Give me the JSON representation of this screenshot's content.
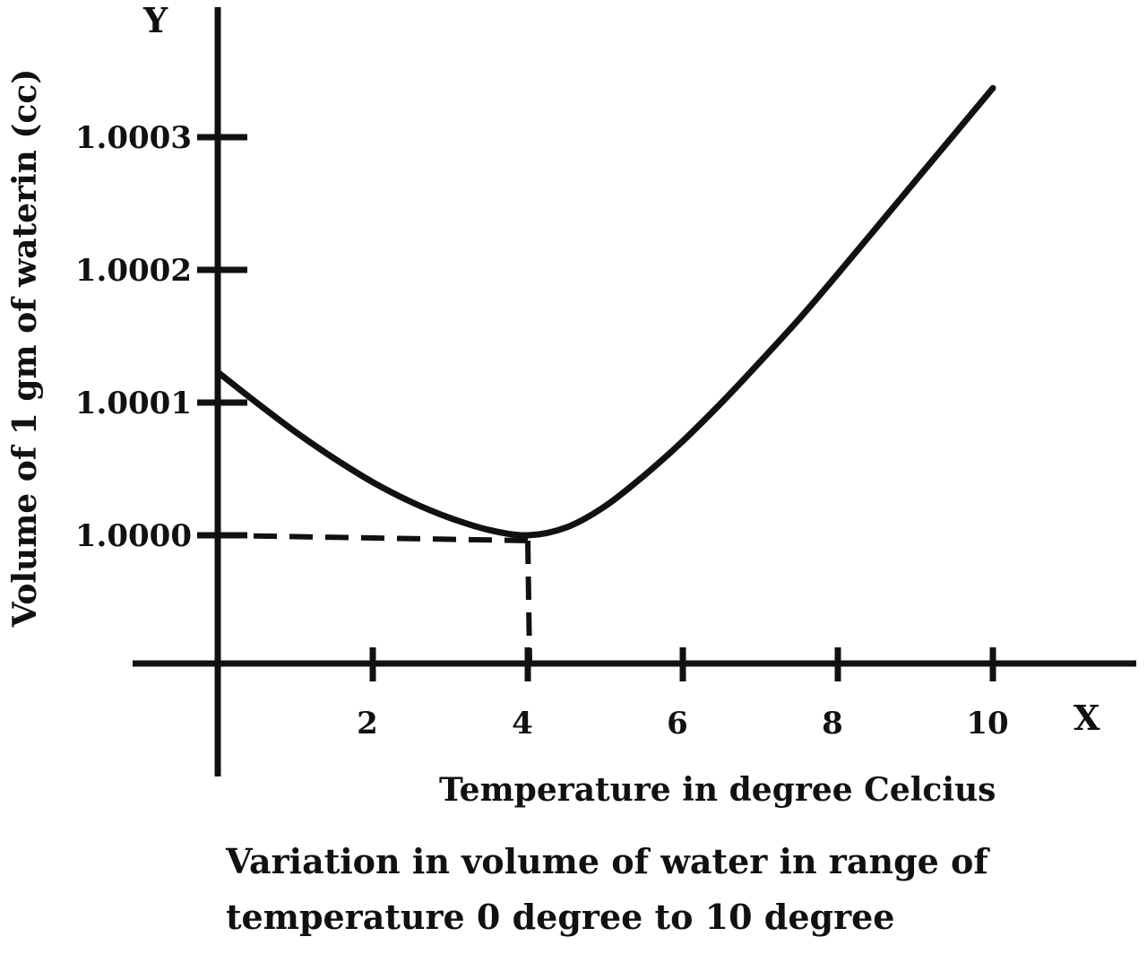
{
  "chart_data": {
    "type": "line",
    "title": "",
    "xlabel": "Temperature in degree Celcius",
    "ylabel": "Volume of 1 gm of waterin (cc)",
    "x_axis_letter": "X",
    "y_axis_letter": "Y",
    "x_ticks": [
      "2",
      "4",
      "6",
      "8",
      "10"
    ],
    "y_ticks": [
      "1.0000",
      "1.0001",
      "1.0002",
      "1.0003"
    ],
    "series": [
      {
        "x": [
          0,
          0.5,
          1,
          1.5,
          2,
          2.5,
          3,
          3.5,
          4,
          4.5,
          5,
          5.5,
          6,
          6.5,
          7,
          7.5,
          8,
          8.5,
          9,
          9.5,
          10
        ],
        "y": [
          1.000123,
          1.0001,
          1.000078,
          1.000058,
          1.00004,
          1.000025,
          1.000013,
          1.000004,
          1.0,
          1.000006,
          1.000022,
          1.000045,
          1.000071,
          1.0001,
          1.000131,
          1.000163,
          1.000197,
          1.000232,
          1.000267,
          1.000302,
          1.000337
        ]
      }
    ],
    "markers": [
      {
        "type": "dashed-guide",
        "x": 4,
        "y": 1.0
      }
    ],
    "grid": false,
    "legend": "none"
  },
  "caption": {
    "line1": "Variation in volume of water in range of",
    "line2": "temperature 0 degree to  10 degree"
  },
  "colors": {
    "ink": "#111111",
    "background": "#ffffff"
  }
}
